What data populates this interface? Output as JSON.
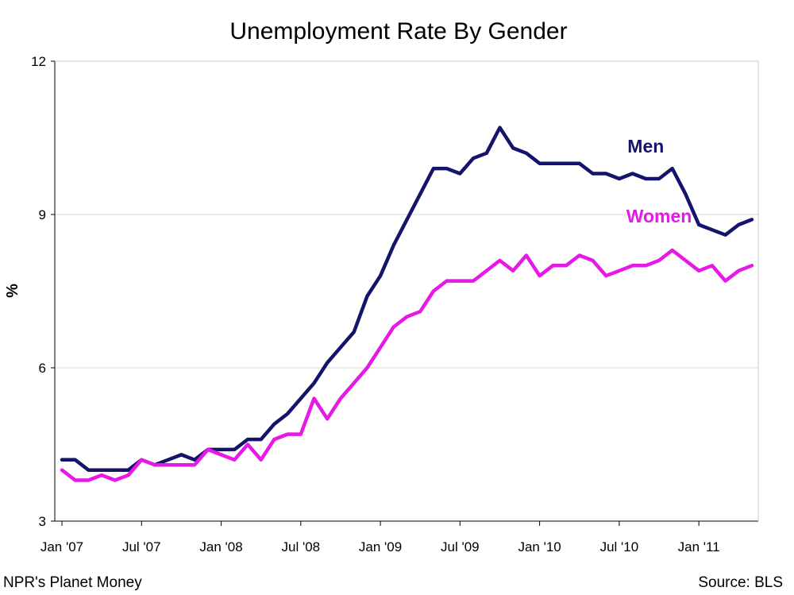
{
  "chart_data": {
    "type": "line",
    "title": "Unemployment Rate By Gender",
    "ylabel": "%",
    "xlabel": "",
    "ylim": [
      3,
      12
    ],
    "yticks": [
      "3",
      "6",
      "9",
      "12"
    ],
    "ytick_values": [
      3,
      6,
      9,
      12
    ],
    "grid": true,
    "x_tick_labels": [
      "Jan '07",
      "Jul '07",
      "Jan '08",
      "Jul '08",
      "Jan '09",
      "Jul '09",
      "Jan '10",
      "Jul '10",
      "Jan '11"
    ],
    "x_tick_months": [
      "2007-01",
      "2007-07",
      "2008-01",
      "2008-07",
      "2009-01",
      "2009-07",
      "2010-01",
      "2010-07",
      "2011-01"
    ],
    "x": [
      "2007-01",
      "2007-02",
      "2007-03",
      "2007-04",
      "2007-05",
      "2007-06",
      "2007-07",
      "2007-08",
      "2007-09",
      "2007-10",
      "2007-11",
      "2007-12",
      "2008-01",
      "2008-02",
      "2008-03",
      "2008-04",
      "2008-05",
      "2008-06",
      "2008-07",
      "2008-08",
      "2008-09",
      "2008-10",
      "2008-11",
      "2008-12",
      "2009-01",
      "2009-02",
      "2009-03",
      "2009-04",
      "2009-05",
      "2009-06",
      "2009-07",
      "2009-08",
      "2009-09",
      "2009-10",
      "2009-11",
      "2009-12",
      "2010-01",
      "2010-02",
      "2010-03",
      "2010-04",
      "2010-05",
      "2010-06",
      "2010-07",
      "2010-08",
      "2010-09",
      "2010-10",
      "2010-11",
      "2010-12",
      "2011-01",
      "2011-02",
      "2011-03",
      "2011-04",
      "2011-05"
    ],
    "series": [
      {
        "name": "Men",
        "color": "#14146b",
        "values": [
          4.2,
          4.2,
          4.0,
          4.0,
          4.0,
          4.0,
          4.2,
          4.1,
          4.2,
          4.3,
          4.2,
          4.4,
          4.4,
          4.4,
          4.6,
          4.6,
          4.9,
          5.1,
          5.4,
          5.7,
          6.1,
          6.4,
          6.7,
          7.4,
          7.8,
          8.4,
          8.9,
          9.4,
          9.9,
          9.9,
          9.8,
          10.1,
          10.2,
          10.7,
          10.3,
          10.2,
          10.0,
          10.0,
          10.0,
          10.0,
          9.8,
          9.8,
          9.7,
          9.8,
          9.7,
          9.7,
          9.9,
          9.4,
          8.8,
          8.7,
          8.6,
          8.8,
          8.9
        ]
      },
      {
        "name": "Women",
        "color": "#e619e6",
        "values": [
          4.0,
          3.8,
          3.8,
          3.9,
          3.8,
          3.9,
          4.2,
          4.1,
          4.1,
          4.1,
          4.1,
          4.4,
          4.3,
          4.2,
          4.5,
          4.2,
          4.6,
          4.7,
          4.7,
          5.4,
          5.0,
          5.4,
          5.7,
          6.0,
          6.4,
          6.8,
          7.0,
          7.1,
          7.5,
          7.7,
          7.7,
          7.7,
          7.9,
          8.1,
          7.9,
          8.2,
          7.8,
          8.0,
          8.0,
          8.2,
          8.1,
          7.8,
          7.9,
          8.0,
          8.0,
          8.1,
          8.3,
          8.1,
          7.9,
          8.0,
          7.7,
          7.9,
          8.0
        ]
      }
    ]
  },
  "footer": {
    "left": "NPR's Planet Money",
    "right": "Source: BLS"
  }
}
